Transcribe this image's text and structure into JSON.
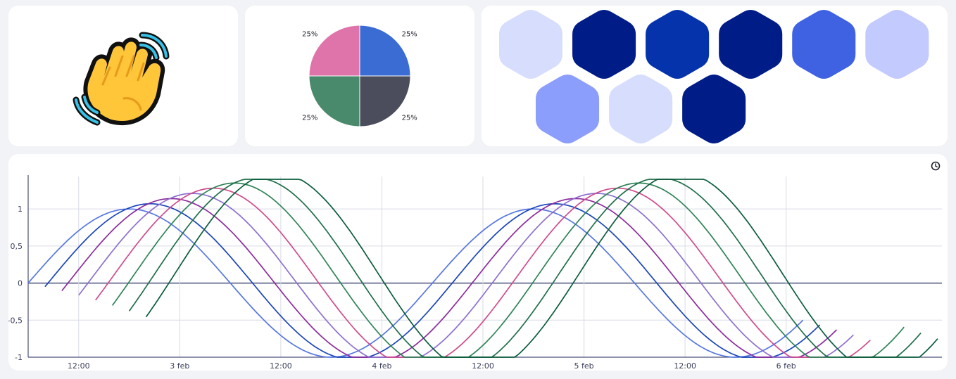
{
  "tiles": {
    "emoji": {
      "icon": "waving-hand-icon"
    },
    "pie": {
      "chart_data": {
        "type": "pie",
        "slices": [
          {
            "label": "25%",
            "value": 25,
            "color": "#3a6cd4"
          },
          {
            "label": "25%",
            "value": 25,
            "color": "#4b4d5c"
          },
          {
            "label": "25%",
            "value": 25,
            "color": "#4a8a6c"
          },
          {
            "label": "25%",
            "value": 25,
            "color": "#df74ab"
          }
        ]
      }
    },
    "honeycomb": {
      "rows": [
        [
          "#d7ddfd",
          "#001c87",
          "#0433ac",
          "#001c87",
          "#3e62e2",
          "#c2cafe"
        ],
        [
          "#8c9efb",
          "#d7ddfd",
          "#001c87"
        ]
      ]
    }
  },
  "chart_data": {
    "type": "line",
    "x_axis": {
      "type": "time",
      "min": "2024-02-02T06:00",
      "max": "2024-02-06T18:30",
      "tick_labels": [
        "12:00",
        "3 feb",
        "12:00",
        "4 feb",
        "12:00",
        "5 feb",
        "12:00",
        "6 feb"
      ]
    },
    "y_axis": {
      "min": -1,
      "max": 1.4,
      "ticks": [
        1,
        0.5,
        0,
        -0.5,
        -1
      ],
      "tick_labels": [
        "1",
        "0,5",
        "0",
        "-0,5",
        "-1"
      ]
    },
    "grid": true,
    "toolbar_icon": "clock-icon",
    "series": [
      {
        "color": "#5576e0",
        "start": "2024-02-02T06:00",
        "end": "2024-02-06T02:00",
        "amplitude": 1.0,
        "offset": 0.0,
        "phase_hours": 0
      },
      {
        "color": "#1b45b8",
        "start": "2024-02-02T08:00",
        "end": "2024-02-06T04:00",
        "amplitude": 1.05,
        "offset": 0.02,
        "phase_hours": 2.5
      },
      {
        "color": "#8b2c9c",
        "start": "2024-02-02T10:00",
        "end": "2024-02-06T06:00",
        "amplitude": 1.1,
        "offset": 0.04,
        "phase_hours": 5
      },
      {
        "color": "#8d6fd0",
        "start": "2024-02-02T12:00",
        "end": "2024-02-06T08:00",
        "amplitude": 1.15,
        "offset": 0.06,
        "phase_hours": 7.5
      },
      {
        "color": "#cf4b8d",
        "start": "2024-02-02T14:00",
        "end": "2024-02-06T10:00",
        "amplitude": 1.2,
        "offset": 0.08,
        "phase_hours": 10
      },
      {
        "color": "#2f8358",
        "start": "2024-02-02T16:00",
        "end": "2024-02-06T14:00",
        "amplitude": 1.25,
        "offset": 0.1,
        "phase_hours": 12.5
      },
      {
        "color": "#1f6e4a",
        "start": "2024-02-02T18:00",
        "end": "2024-02-06T16:00",
        "amplitude": 1.3,
        "offset": 0.12,
        "phase_hours": 15
      },
      {
        "color": "#0b5c3c",
        "start": "2024-02-02T20:00",
        "end": "2024-02-06T18:00",
        "amplitude": 1.35,
        "offset": 0.14,
        "phase_hours": 17.5
      }
    ]
  }
}
